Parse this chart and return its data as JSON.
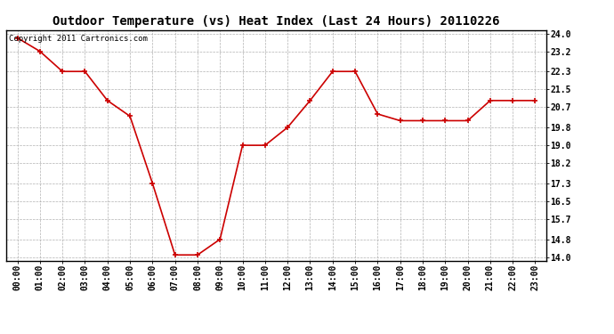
{
  "title": "Outdoor Temperature (vs) Heat Index (Last 24 Hours) 20110226",
  "copyright_text": "Copyright 2011 Cartronics.com",
  "hours": [
    "00:00",
    "01:00",
    "02:00",
    "03:00",
    "04:00",
    "05:00",
    "06:00",
    "07:00",
    "08:00",
    "09:00",
    "10:00",
    "11:00",
    "12:00",
    "13:00",
    "14:00",
    "15:00",
    "16:00",
    "17:00",
    "18:00",
    "19:00",
    "20:00",
    "21:00",
    "22:00",
    "23:00"
  ],
  "values": [
    23.8,
    23.2,
    22.3,
    22.3,
    21.0,
    20.3,
    17.3,
    14.1,
    14.1,
    14.8,
    19.0,
    19.0,
    19.8,
    21.0,
    22.3,
    22.3,
    20.4,
    20.1,
    20.1,
    20.1,
    20.1,
    21.0,
    21.0,
    21.0
  ],
  "line_color": "#cc0000",
  "marker": "+",
  "marker_color": "#cc0000",
  "marker_size": 5,
  "line_width": 1.2,
  "grid_color": "#aaaaaa",
  "grid_style": "--",
  "background_color": "#ffffff",
  "plot_bg_color": "#ffffff",
  "yticks": [
    14.0,
    14.8,
    15.7,
    16.5,
    17.3,
    18.2,
    19.0,
    19.8,
    20.7,
    21.5,
    22.3,
    23.2,
    24.0
  ],
  "ytick_labels": [
    "14.0",
    "14.8",
    "15.7",
    "16.5",
    "17.3",
    "18.2",
    "19.0",
    "19.8",
    "20.7",
    "21.5",
    "22.3",
    "23.2",
    "24.0"
  ],
  "ylim_min": 13.85,
  "ylim_max": 24.15,
  "title_fontsize": 10,
  "tick_fontsize": 7,
  "copyright_fontsize": 6.5
}
